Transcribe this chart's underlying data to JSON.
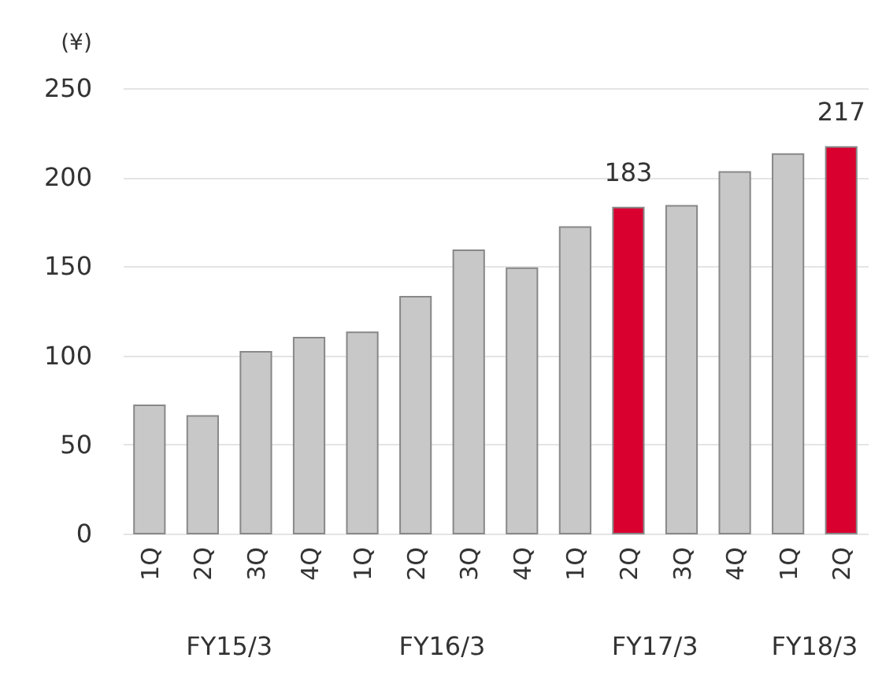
{
  "chart_data": {
    "type": "bar",
    "ylabel": "(¥)",
    "categories": [
      "1Q",
      "2Q",
      "3Q",
      "4Q",
      "1Q",
      "2Q",
      "3Q",
      "4Q",
      "1Q",
      "2Q",
      "3Q",
      "4Q",
      "1Q",
      "2Q"
    ],
    "values": [
      72,
      66,
      102,
      110,
      113,
      133,
      159,
      149,
      172,
      183,
      184,
      203,
      213,
      217
    ],
    "colors": [
      "#c8c8c8",
      "#c8c8c8",
      "#c8c8c8",
      "#c8c8c8",
      "#c8c8c8",
      "#c8c8c8",
      "#c8c8c8",
      "#c8c8c8",
      "#c8c8c8",
      "#d9002f",
      "#c8c8c8",
      "#c8c8c8",
      "#c8c8c8",
      "#d9002f"
    ],
    "value_labels": [
      null,
      null,
      null,
      null,
      null,
      null,
      null,
      null,
      null,
      "183",
      null,
      null,
      null,
      "217"
    ],
    "annotations": [
      "FY15/3",
      "FY16/3",
      "FY17/3",
      "FY18/3"
    ],
    "ylim": [
      0,
      250
    ],
    "yticks": [
      0,
      50,
      100,
      150,
      200,
      250
    ],
    "grid": "y"
  }
}
